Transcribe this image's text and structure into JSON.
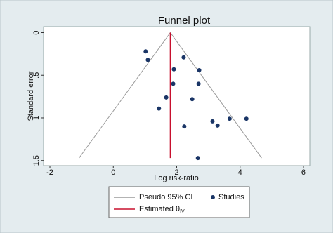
{
  "chart_data": {
    "type": "funnel",
    "title": "Funnel plot",
    "x_label": "Log risk-ratio",
    "y_label": "Standard error",
    "xlim": [
      -2.2,
      6.2
    ],
    "xticks": [
      -2,
      0,
      2,
      4,
      6
    ],
    "ylim": [
      -0.07,
      1.56
    ],
    "y_reversed": true,
    "yticks": [
      0,
      {
        "value": 0.5,
        "label": ".5"
      },
      1,
      1.5
    ],
    "series": [
      {
        "name": "Pseudo 95% CI",
        "kind": "line",
        "color": "#9a9a9a",
        "x": [
          -1.08,
          1.8,
          4.68
        ],
        "y": [
          1.47,
          0,
          1.47
        ]
      },
      {
        "name": "Estimated θ",
        "subscript": "IV",
        "kind": "line",
        "color": "#c8102e",
        "x": [
          1.8,
          1.8
        ],
        "y": [
          0,
          1.47
        ]
      },
      {
        "name": "Studies",
        "kind": "scatter",
        "color": "#1a3566",
        "x": [
          1.02,
          1.09,
          2.22,
          1.91,
          2.71,
          1.89,
          2.69,
          1.67,
          2.49,
          1.44,
          3.67,
          4.2,
          3.13,
          3.29,
          2.24,
          2.67
        ],
        "y": [
          0.22,
          0.32,
          0.29,
          0.43,
          0.44,
          0.6,
          0.6,
          0.76,
          0.78,
          0.89,
          1.01,
          1.01,
          1.04,
          1.09,
          1.1,
          1.47
        ]
      }
    ]
  }
}
